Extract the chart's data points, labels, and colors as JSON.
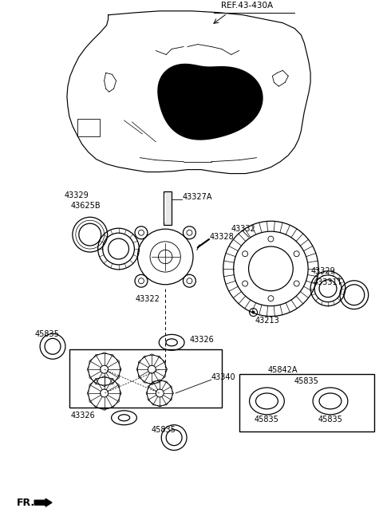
{
  "bg_color": "#ffffff",
  "line_color": "#000000",
  "labels": {
    "ref": "REF.43-430A",
    "43329_top": "43329",
    "43625B": "43625B",
    "43327A": "43327A",
    "43328": "43328",
    "43322": "43322",
    "43332": "43332",
    "43329_right": "43329",
    "43331T": "43331T",
    "43213": "43213",
    "45835_left": "45835",
    "43326_top": "43326",
    "43340": "43340",
    "43326_bot": "43326",
    "45835_bot": "45835",
    "45842A": "45842A",
    "45835_box1": "45835",
    "45835_box2": "45835",
    "fr": "FR."
  }
}
